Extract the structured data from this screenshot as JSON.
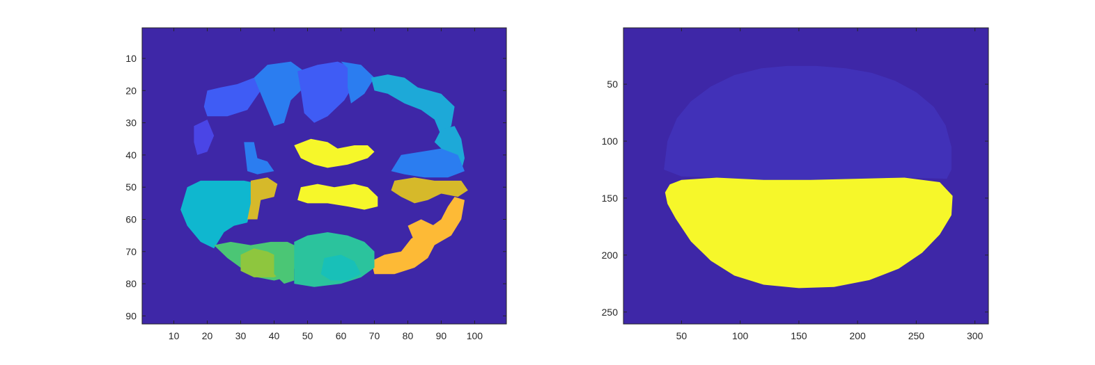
{
  "colors": {
    "background": "#3e27a7",
    "axis": "#262626",
    "label_map": [
      "#3e27a7",
      "#4131b8",
      "#4a45e6",
      "#3f5cf5",
      "#2b7df0",
      "#1da9d8",
      "#0fb7cf",
      "#18c0b8",
      "#2bc39d",
      "#4bc675",
      "#8ec63e",
      "#d6b92a",
      "#fdba36",
      "#f7c535",
      "#f6f72a"
    ]
  },
  "chart_data": [
    {
      "type": "heatmap",
      "title": "",
      "xlabel": "",
      "ylabel": "",
      "xlim": [
        0.5,
        109.5
      ],
      "ylim": [
        0.5,
        92.5
      ],
      "y_reversed": true,
      "x_ticks": [
        10,
        20,
        30,
        40,
        50,
        60,
        70,
        80,
        90,
        100
      ],
      "y_ticks": [
        10,
        20,
        30,
        40,
        50,
        60,
        70,
        80,
        90
      ],
      "x_tick_labels": [
        "10",
        "20",
        "30",
        "40",
        "50",
        "60",
        "70",
        "80",
        "90",
        "100"
      ],
      "y_tick_labels": [
        "10",
        "20",
        "30",
        "40",
        "50",
        "60",
        "70",
        "80",
        "90"
      ],
      "background_label": 0,
      "regions": [
        {
          "label": 3,
          "polygon": [
            [
              19,
              25
            ],
            [
              20,
              20
            ],
            [
              24,
              19
            ],
            [
              29,
              18
            ],
            [
              34,
              16
            ],
            [
              36,
              20
            ],
            [
              32,
              26
            ],
            [
              26,
              28
            ],
            [
              20,
              28
            ]
          ]
        },
        {
          "label": 4,
          "polygon": [
            [
              34,
              16
            ],
            [
              38,
              12
            ],
            [
              45,
              11
            ],
            [
              49,
              14
            ],
            [
              48,
              20
            ],
            [
              45,
              23
            ],
            [
              43,
              30
            ],
            [
              40,
              31
            ],
            [
              38,
              26
            ],
            [
              36,
              21
            ]
          ]
        },
        {
          "label": 3,
          "polygon": [
            [
              47,
              14
            ],
            [
              53,
              12
            ],
            [
              59,
              11
            ],
            [
              64,
              13
            ],
            [
              64,
              18
            ],
            [
              61,
              23
            ],
            [
              56,
              28
            ],
            [
              52,
              30
            ],
            [
              49,
              27
            ],
            [
              48,
              20
            ]
          ]
        },
        {
          "label": 4,
          "polygon": [
            [
              60,
              11
            ],
            [
              66,
              12
            ],
            [
              70,
              16
            ],
            [
              67,
              21
            ],
            [
              63,
              24
            ],
            [
              62,
              19
            ],
            [
              62,
              13
            ]
          ]
        },
        {
          "label": 5,
          "polygon": [
            [
              69,
              16
            ],
            [
              74,
              15
            ],
            [
              79,
              16
            ],
            [
              83,
              19
            ],
            [
              90,
              21
            ],
            [
              94,
              25
            ],
            [
              93,
              31
            ],
            [
              90,
              34
            ],
            [
              88,
              29
            ],
            [
              84,
              26
            ],
            [
              79,
              24
            ],
            [
              74,
              21
            ],
            [
              70,
              20
            ]
          ]
        },
        {
          "label": 5,
          "polygon": [
            [
              90,
              32
            ],
            [
              94,
              31
            ],
            [
              96,
              35
            ],
            [
              97,
              41
            ],
            [
              96,
              45
            ],
            [
              92,
              44
            ],
            [
              91,
              39
            ],
            [
              88,
              36
            ]
          ]
        },
        {
          "label": 4,
          "polygon": [
            [
              78,
              40
            ],
            [
              84,
              39
            ],
            [
              90,
              38
            ],
            [
              95,
              40
            ],
            [
              97,
              45
            ],
            [
              92,
              47
            ],
            [
              85,
              47
            ],
            [
              79,
              46
            ],
            [
              75,
              45
            ]
          ]
        },
        {
          "label": 4,
          "polygon": [
            [
              31,
              36
            ],
            [
              34,
              36
            ],
            [
              35,
              41
            ],
            [
              38,
              42
            ],
            [
              40,
              45
            ],
            [
              35,
              46
            ],
            [
              32,
              45
            ]
          ]
        },
        {
          "label": 14,
          "polygon": [
            [
              46,
              37
            ],
            [
              51,
              35
            ],
            [
              56,
              36
            ],
            [
              59,
              38
            ],
            [
              64,
              37
            ],
            [
              68,
              37
            ],
            [
              70,
              39
            ],
            [
              68,
              41
            ],
            [
              62,
              43
            ],
            [
              56,
              44
            ],
            [
              52,
              43
            ],
            [
              48,
              41
            ]
          ]
        },
        {
          "label": 6,
          "polygon": [
            [
              14,
              50
            ],
            [
              18,
              48
            ],
            [
              25,
              48
            ],
            [
              31,
              48
            ],
            [
              36,
              49
            ],
            [
              36,
              54
            ],
            [
              33,
              57
            ],
            [
              32,
              61
            ],
            [
              28,
              62
            ],
            [
              25,
              64
            ],
            [
              22,
              69
            ],
            [
              18,
              67
            ],
            [
              14,
              62
            ],
            [
              12,
              57
            ]
          ]
        },
        {
          "label": 11,
          "polygon": [
            [
              33,
              48
            ],
            [
              38,
              47
            ],
            [
              41,
              49
            ],
            [
              40,
              53
            ],
            [
              36,
              54
            ],
            [
              35,
              60
            ],
            [
              32,
              60
            ],
            [
              33,
              55
            ]
          ]
        },
        {
          "label": 14,
          "polygon": [
            [
              48,
              50
            ],
            [
              53,
              49
            ],
            [
              58,
              50
            ],
            [
              64,
              49
            ],
            [
              68,
              50
            ],
            [
              71,
              53
            ],
            [
              71,
              56
            ],
            [
              67,
              57
            ],
            [
              62,
              56
            ],
            [
              56,
              55
            ],
            [
              50,
              55
            ],
            [
              47,
              54
            ]
          ]
        },
        {
          "label": 11,
          "polygon": [
            [
              76,
              48
            ],
            [
              82,
              47
            ],
            [
              88,
              48
            ],
            [
              96,
              48
            ],
            [
              98,
              51
            ],
            [
              95,
              53
            ],
            [
              90,
              52
            ],
            [
              86,
              54
            ],
            [
              82,
              55
            ],
            [
              78,
              53
            ],
            [
              75,
              51
            ]
          ]
        },
        {
          "label": 12,
          "polygon": [
            [
              94,
              53
            ],
            [
              97,
              54
            ],
            [
              96,
              60
            ],
            [
              93,
              65
            ],
            [
              88,
              68
            ],
            [
              86,
              72
            ],
            [
              82,
              75
            ],
            [
              76,
              77
            ],
            [
              70,
              77
            ],
            [
              69,
              73
            ],
            [
              73,
              71
            ],
            [
              78,
              70
            ],
            [
              81,
              66
            ],
            [
              86,
              63
            ],
            [
              90,
              60
            ],
            [
              92,
              56
            ]
          ]
        },
        {
          "label": 12,
          "polygon": [
            [
              80,
              62
            ],
            [
              84,
              60
            ],
            [
              88,
              62
            ],
            [
              86,
              66
            ],
            [
              82,
              67
            ]
          ]
        },
        {
          "label": 9,
          "polygon": [
            [
              22,
              68
            ],
            [
              27,
              67
            ],
            [
              33,
              68
            ],
            [
              39,
              67
            ],
            [
              44,
              67
            ],
            [
              48,
              69
            ],
            [
              47,
              74
            ],
            [
              44,
              78
            ],
            [
              40,
              79
            ],
            [
              35,
              78
            ],
            [
              30,
              75
            ],
            [
              26,
              72
            ]
          ]
        },
        {
          "label": 10,
          "polygon": [
            [
              30,
              71
            ],
            [
              34,
              69
            ],
            [
              38,
              70
            ],
            [
              40,
              71
            ],
            [
              43,
              73
            ],
            [
              44,
              76
            ],
            [
              40,
              78
            ],
            [
              34,
              78
            ],
            [
              30,
              76
            ]
          ]
        },
        {
          "label": 9,
          "polygon": [
            [
              40,
              70
            ],
            [
              44,
              68
            ],
            [
              46,
              72
            ],
            [
              46,
              79
            ],
            [
              43,
              80
            ],
            [
              40,
              77
            ]
          ]
        },
        {
          "label": 8,
          "polygon": [
            [
              46,
              67
            ],
            [
              50,
              65
            ],
            [
              56,
              64
            ],
            [
              62,
              65
            ],
            [
              67,
              67
            ],
            [
              70,
              70
            ],
            [
              70,
              75
            ],
            [
              66,
              78
            ],
            [
              60,
              80
            ],
            [
              52,
              81
            ],
            [
              46,
              80
            ]
          ]
        },
        {
          "label": 7,
          "polygon": [
            [
              55,
              72
            ],
            [
              60,
              71
            ],
            [
              64,
              73
            ],
            [
              66,
              77
            ],
            [
              62,
              79
            ],
            [
              57,
              79
            ],
            [
              54,
              77
            ]
          ]
        },
        {
          "label": 2,
          "polygon": [
            [
              16,
              31
            ],
            [
              20,
              29
            ],
            [
              22,
              34
            ],
            [
              20,
              39
            ],
            [
              17,
              40
            ],
            [
              16,
              36
            ]
          ]
        }
      ]
    },
    {
      "type": "heatmap",
      "title": "",
      "xlabel": "",
      "ylabel": "",
      "xlim": [
        0.5,
        311.5
      ],
      "ylim": [
        0.5,
        260.5
      ],
      "y_reversed": true,
      "x_ticks": [
        50,
        100,
        150,
        200,
        250,
        300
      ],
      "y_ticks": [
        50,
        100,
        150,
        200,
        250
      ],
      "x_tick_labels": [
        "50",
        "100",
        "150",
        "200",
        "250",
        "300"
      ],
      "y_tick_labels": [
        "50",
        "100",
        "150",
        "200",
        "250"
      ],
      "background_label": 0,
      "regions": [
        {
          "label": 1,
          "polygon": [
            [
              35,
              125
            ],
            [
              38,
              100
            ],
            [
              46,
              80
            ],
            [
              58,
              65
            ],
            [
              75,
              52
            ],
            [
              95,
              42
            ],
            [
              118,
              36
            ],
            [
              140,
              34
            ],
            [
              165,
              34
            ],
            [
              190,
              36
            ],
            [
              212,
              40
            ],
            [
              232,
              47
            ],
            [
              250,
              57
            ],
            [
              265,
              70
            ],
            [
              275,
              86
            ],
            [
              280,
              105
            ],
            [
              280,
              125
            ],
            [
              276,
              133
            ],
            [
              240,
              132
            ],
            [
              200,
              133
            ],
            [
              160,
              134
            ],
            [
              120,
              134
            ],
            [
              80,
              132
            ],
            [
              50,
              131
            ]
          ]
        },
        {
          "label": 14,
          "polygon": [
            [
              36,
              145
            ],
            [
              40,
              138
            ],
            [
              50,
              134
            ],
            [
              80,
              132
            ],
            [
              120,
              134
            ],
            [
              160,
              134
            ],
            [
              200,
              133
            ],
            [
              240,
              132
            ],
            [
              270,
              136
            ],
            [
              281,
              148
            ],
            [
              280,
              165
            ],
            [
              270,
              182
            ],
            [
              255,
              198
            ],
            [
              235,
              212
            ],
            [
              210,
              222
            ],
            [
              180,
              228
            ],
            [
              150,
              229
            ],
            [
              120,
              226
            ],
            [
              95,
              218
            ],
            [
              75,
              205
            ],
            [
              58,
              188
            ],
            [
              45,
              168
            ],
            [
              38,
              155
            ]
          ]
        }
      ]
    }
  ]
}
